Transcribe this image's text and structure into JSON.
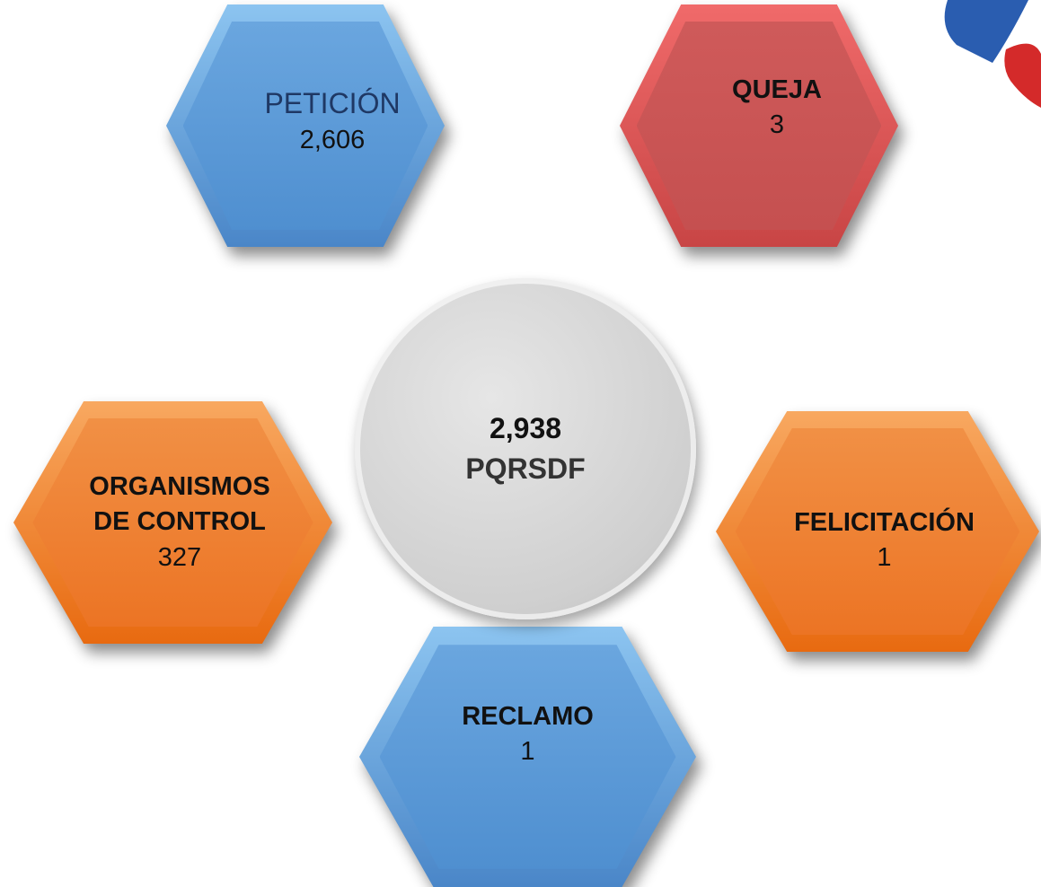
{
  "center": {
    "value": "2,938",
    "label": "PQRSDF"
  },
  "nodes": [
    {
      "label": "PETICIÓN",
      "value": "2,606"
    },
    {
      "label": "QUEJA",
      "value": "3"
    },
    {
      "label": "ORGANISMOS DE CONTROL",
      "value": "327"
    },
    {
      "label": "FELICITACIÓN",
      "value": "1"
    },
    {
      "label": "RECLAMO",
      "value": "1"
    }
  ]
}
